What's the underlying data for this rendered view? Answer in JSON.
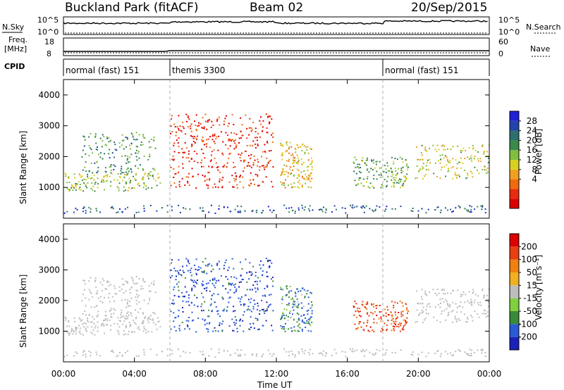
{
  "header": {
    "site": "Buckland Park (fitACF)",
    "beam": "Beam 02",
    "date": "20/Sep/2015"
  },
  "top_panels": {
    "nsky_label": "N.Sky",
    "nsky_ticks": [
      "10^5",
      "10^0"
    ],
    "nsearch_label": "N.Search",
    "nsearch_ticks": [
      "10^5",
      "10^0"
    ],
    "freq_label": "Freq.",
    "freq_unit": "[MHz]",
    "freq_ticks": [
      "18",
      "8"
    ],
    "nave_label": "Nave",
    "nave_ticks": [
      "60",
      "0"
    ],
    "cpid_label": "CPID",
    "modes": [
      {
        "label": "normal (fast) 151",
        "start_hour": 0,
        "end_hour": 6
      },
      {
        "label": "themis 3300",
        "start_hour": 6,
        "end_hour": 18
      },
      {
        "label": "normal (fast) 151",
        "start_hour": 18,
        "end_hour": 24
      }
    ],
    "data_gap_hours": [
      11.9,
      12.2
    ]
  },
  "axes": {
    "xlabel": "Time UT",
    "x_ticks": [
      "00:00",
      "04:00",
      "08:00",
      "12:00",
      "16:00",
      "20:00",
      "00:00"
    ],
    "ylabel": "Slant Range [km]",
    "y_ticks": [
      "4000",
      "3000",
      "2000",
      "1000"
    ]
  },
  "colorbars": {
    "power": {
      "label": "Power [dB]",
      "ticks": [
        "28",
        "24",
        "20",
        "16",
        "12",
        "8",
        "4"
      ],
      "colors": [
        "#1f1fd6",
        "#2244aa",
        "#2f6e6e",
        "#3a8a4a",
        "#7fbf3f",
        "#d8d020",
        "#f0a020",
        "#f06a10",
        "#e82a10",
        "#dd0000"
      ]
    },
    "velocity": {
      "label": "Velocity [m s⁻¹]",
      "ticks": [
        "200",
        "100",
        "50",
        "15",
        "-15",
        "-50",
        "-100",
        "-200"
      ],
      "colors": [
        "#1a22b8",
        "#2a5ad6",
        "#3a8a3a",
        "#7fcf3f",
        "#bdbdbd",
        "#f0b020",
        "#f08010",
        "#e84010",
        "#dd0000"
      ]
    }
  },
  "chart_data": {
    "type": "heatmap",
    "title": "Buckland Park (fitACF)",
    "xlabel": "Time UT",
    "ylabel": "Slant Range [km]",
    "xlim": [
      0,
      24
    ],
    "ylim": [
      0,
      4500
    ],
    "regions": [
      {
        "name": "backscatter-band-1",
        "t0": 0.0,
        "t1": 5.5,
        "r0": 900,
        "r1": 1500,
        "power": 14,
        "velocity": 0
      },
      {
        "name": "backscatter-band-2",
        "t0": 1.0,
        "t1": 5.2,
        "r0": 1500,
        "r1": 2800,
        "power": 10,
        "velocity": 0
      },
      {
        "name": "dayside-cluster",
        "t0": 6.0,
        "t1": 11.8,
        "r0": 1000,
        "r1": 3400,
        "power": 26,
        "velocity": 120
      },
      {
        "name": "post-noon-patch",
        "t0": 12.2,
        "t1": 14.0,
        "r0": 1000,
        "r1": 2500,
        "power": 18,
        "velocity": 60
      },
      {
        "name": "afternoon-patch",
        "t0": 16.3,
        "t1": 19.5,
        "r0": 1000,
        "r1": 2000,
        "power": 12,
        "velocity": -100
      },
      {
        "name": "evening-arc",
        "t0": 19.8,
        "t1": 24.0,
        "r0": 1300,
        "r1": 2400,
        "power": 16,
        "velocity": 0
      },
      {
        "name": "ground-scatter-floor",
        "t0": 0.0,
        "t1": 24.0,
        "r0": 180,
        "r1": 450,
        "power": 6,
        "velocity": 0
      }
    ]
  }
}
